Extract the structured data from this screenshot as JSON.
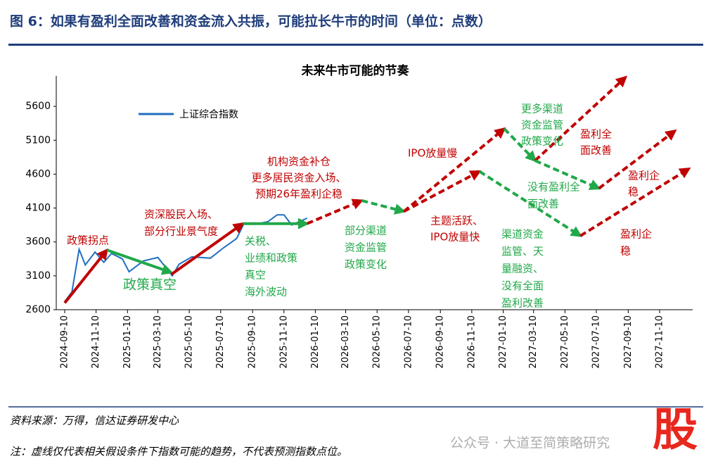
{
  "header": {
    "title": "图 6：如果有盈利全面改善和资金流入共振，可能拉长牛市的时间（单位：点数）"
  },
  "chart_data": {
    "type": "line",
    "title": "未来牛市可能的节奏",
    "categories": [
      "2024-09-10",
      "2024-11-10",
      "2025-01-10",
      "2025-03-10",
      "2025-05-10",
      "2025-07-10",
      "2025-09-10",
      "2025-11-10",
      "2026-01-10",
      "2026-03-10",
      "2026-05-10",
      "2026-07-10",
      "2026-09-10",
      "2026-11-10",
      "2027-01-10",
      "2027-03-10",
      "2027-05-10",
      "2027-07-10",
      "2027-09-10",
      "2027-11-10"
    ],
    "ylim": [
      2600,
      6050
    ],
    "yticks": [
      2600,
      3100,
      3600,
      4100,
      4600,
      5100,
      5600
    ],
    "series": [
      {
        "name": "上证综合指数",
        "color": "#1f6fbf",
        "x": [
          "2024-09-10",
          "2024-09-24",
          "2024-10-08",
          "2024-10-20",
          "2024-11-08",
          "2024-11-25",
          "2024-12-10",
          "2024-12-31",
          "2025-01-13",
          "2025-02-10",
          "2025-03-10",
          "2025-04-07",
          "2025-04-20",
          "2025-05-15",
          "2025-06-20",
          "2025-07-15",
          "2025-08-10",
          "2025-08-25",
          "2025-09-15",
          "2025-10-10",
          "2025-10-28",
          "2025-11-10",
          "2025-11-25",
          "2025-12-10",
          "2025-12-25"
        ],
        "values": [
          2720,
          2860,
          3490,
          3260,
          3450,
          3300,
          3430,
          3350,
          3160,
          3320,
          3370,
          3100,
          3270,
          3380,
          3360,
          3510,
          3650,
          3880,
          3860,
          3900,
          4000,
          4000,
          3850,
          3900,
          3950
        ]
      }
    ],
    "arrows": [
      {
        "from": [
          "2024-09-10",
          2700
        ],
        "to": [
          "2024-12-01",
          3480
        ],
        "color": "#c00000",
        "style": "solid"
      },
      {
        "from": [
          "2024-12-01",
          3480
        ],
        "to": [
          "2025-04-05",
          3150
        ],
        "color": "#21a84a",
        "style": "solid"
      },
      {
        "from": [
          "2025-04-05",
          3120
        ],
        "to": [
          "2025-08-22",
          3870
        ],
        "color": "#c00000",
        "style": "solid"
      },
      {
        "from": [
          "2025-08-22",
          3870
        ],
        "to": [
          "2025-12-25",
          3870
        ],
        "color": "#21a84a",
        "style": "solid"
      },
      {
        "from": [
          "2025-12-25",
          3870
        ],
        "to": [
          "2026-04-10",
          4210
        ],
        "color": "#c00000",
        "style": "dashed"
      },
      {
        "from": [
          "2026-04-10",
          4210
        ],
        "to": [
          "2026-07-01",
          4050
        ],
        "color": "#21a84a",
        "style": "dashed"
      },
      {
        "from": [
          "2026-07-01",
          4050
        ],
        "to": [
          "2027-01-12",
          5270
        ],
        "color": "#c00000",
        "style": "dashed"
      },
      {
        "from": [
          "2026-07-01",
          4050
        ],
        "to": [
          "2026-11-25",
          4640
        ],
        "color": "#c00000",
        "style": "dashed"
      },
      {
        "from": [
          "2027-01-12",
          5270
        ],
        "to": [
          "2027-03-13",
          4800
        ],
        "color": "#21a84a",
        "style": "dashed"
      },
      {
        "from": [
          "2027-03-13",
          4800
        ],
        "to": [
          "2027-09-05",
          6030
        ],
        "color": "#c00000",
        "style": "dashed"
      },
      {
        "from": [
          "2027-03-13",
          4800
        ],
        "to": [
          "2027-07-15",
          4390
        ],
        "color": "#21a84a",
        "style": "dashed"
      },
      {
        "from": [
          "2027-07-15",
          4390
        ],
        "to": [
          "2027-12-10",
          5240
        ],
        "color": "#c00000",
        "style": "dashed"
      },
      {
        "from": [
          "2026-11-25",
          4640
        ],
        "to": [
          "2027-06-09",
          3690
        ],
        "color": "#21a84a",
        "style": "dashed"
      },
      {
        "from": [
          "2027-06-09",
          3690
        ],
        "to": [
          "2028-01-06",
          4680
        ],
        "color": "#c00000",
        "style": "dashed"
      }
    ],
    "annotations": [
      {
        "lines": [
          "政策拐点"
        ],
        "color": "#c00000"
      },
      {
        "lines": [
          "资深股民入场、",
          "部分行业景气度"
        ],
        "color": "#c00000"
      },
      {
        "lines": [
          "政策真空"
        ],
        "color": "#21a84a"
      },
      {
        "lines": [
          "机构资金补仓",
          "更多居民资金入场、",
          "预期26年盈利企稳"
        ],
        "color": "#c00000"
      },
      {
        "lines": [
          "关税、",
          "业绩和政策",
          "真空",
          "海外波动"
        ],
        "color": "#21a84a"
      },
      {
        "lines": [
          "部分渠道",
          "资金监管",
          "政策变化"
        ],
        "color": "#21a84a"
      },
      {
        "lines": [
          "IPO放量慢"
        ],
        "color": "#c00000"
      },
      {
        "lines": [
          "主题活跃、",
          "IPO放量快"
        ],
        "color": "#c00000"
      },
      {
        "lines": [
          "更多渠道",
          "资金监管",
          "政策变化"
        ],
        "color": "#21a84a"
      },
      {
        "lines": [
          "盈利全",
          "面改善"
        ],
        "color": "#c00000"
      },
      {
        "lines": [
          "没有盈利全",
          "面改善"
        ],
        "color": "#21a84a"
      },
      {
        "lines": [
          "盈利企",
          "稳"
        ],
        "color": "#c00000"
      },
      {
        "lines": [
          "渠道资金",
          "监管、天",
          "量融资、",
          "没有全面",
          "盈利改善"
        ],
        "color": "#21a84a"
      },
      {
        "lines": [
          "盈利企",
          "稳"
        ],
        "color": "#c00000"
      }
    ]
  },
  "footer": {
    "source": "资料来源：万得，信达证券研发中心",
    "note": "注：虚线仅代表相关假设条件下指数可能的趋势，不代表预测指数点位。"
  },
  "watermark": {
    "account": "公众号 · 大道至简策略研究",
    "logo": "股"
  }
}
